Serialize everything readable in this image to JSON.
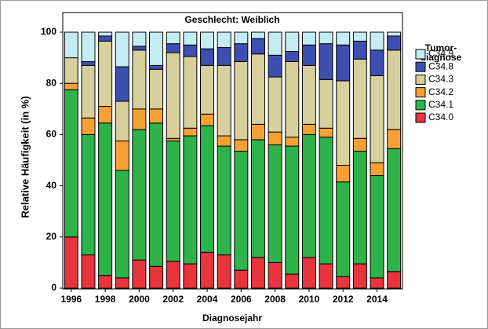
{
  "chart_data": {
    "type": "stacked_bar",
    "title": "Geschlecht: Weiblich",
    "x_label": "Diagnosejahr",
    "y_label": "Relative Häufigkeit (in %)",
    "legend_title": [
      "Tumor-",
      "diagnose"
    ],
    "categories": [
      "1996",
      null,
      "1998",
      null,
      "2000",
      null,
      "2002",
      null,
      "2004",
      null,
      "2006",
      null,
      "2008",
      null,
      "2010",
      null,
      "2012",
      null,
      "2014",
      null
    ],
    "series": [
      {
        "name": "C34.0",
        "color": "#e8343b",
        "values": [
          20,
          13,
          5,
          4,
          11,
          8.5,
          10.5,
          9.5,
          14,
          13,
          7,
          12,
          10,
          5.5,
          12,
          9.5,
          4.5,
          9.5,
          4,
          6.5
        ]
      },
      {
        "name": "C34.1",
        "color": "#2db34a",
        "values": [
          57.5,
          47,
          59.5,
          42,
          51,
          56,
          47,
          50,
          49.5,
          42.5,
          46.5,
          46,
          46,
          50,
          48,
          49.5,
          37,
          44,
          40,
          48
        ]
      },
      {
        "name": "C34.2",
        "color": "#f7a135",
        "values": [
          2.5,
          6.5,
          6.5,
          11.5,
          8,
          5.5,
          1,
          3,
          4.5,
          4,
          4.5,
          6,
          5,
          3.5,
          4,
          3.5,
          6.5,
          5,
          5,
          7.5
        ]
      },
      {
        "name": "C34.3",
        "color": "#d7cf9c",
        "values": [
          10,
          20.5,
          25.5,
          15.5,
          23,
          15.5,
          33.5,
          28,
          19,
          27.5,
          30.5,
          27.5,
          21.5,
          29.5,
          23,
          19,
          33,
          31,
          34,
          31
        ]
      },
      {
        "name": "C34.8",
        "color": "#3d50b0",
        "values": [
          0,
          1.5,
          2,
          13.5,
          1.5,
          1.5,
          3.5,
          4.5,
          6.5,
          7,
          7,
          6,
          8.5,
          4,
          8,
          14,
          14,
          7,
          10,
          5.5
        ]
      },
      {
        "name": "C34.9",
        "color": "#c4ecf3",
        "values": [
          10,
          11.5,
          1.5,
          13.5,
          5.5,
          13,
          4.5,
          5,
          6.5,
          6,
          4.5,
          2.5,
          9,
          7.5,
          5,
          4.5,
          5,
          3.5,
          7,
          1.5
        ]
      }
    ],
    "ylim": [
      0,
      100
    ],
    "yticks": [
      0,
      20,
      40,
      60,
      80,
      100
    ]
  }
}
